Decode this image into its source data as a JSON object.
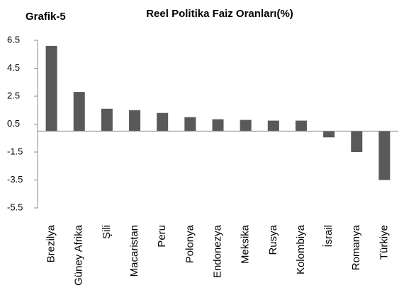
{
  "chart_data": {
    "type": "bar",
    "title": "Reel Politika Faiz Oranları(%)",
    "annotation": "Grafik-5",
    "categories": [
      "Brezilya",
      "Güney Afrika",
      "Şili",
      "Macaristan",
      "Peru",
      "Polonya",
      "Endonezya",
      "Meksika",
      "Rusya",
      "Kolombiya",
      "İsrail",
      "Romanya",
      "Türkiye"
    ],
    "values": [
      6.1,
      2.8,
      1.6,
      1.5,
      1.3,
      1.0,
      0.85,
      0.8,
      0.75,
      0.75,
      -0.45,
      -1.5,
      -3.5
    ],
    "color": "#595959",
    "ylim": [
      -5.5,
      6.5
    ],
    "yticks": [
      -5.5,
      -3.5,
      -1.5,
      0.5,
      2.5,
      4.5,
      6.5
    ],
    "grid": false
  }
}
